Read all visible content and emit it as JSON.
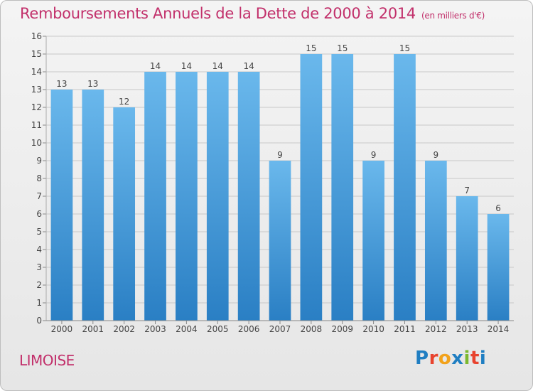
{
  "header": {
    "title": "Remboursements Annuels de la Dette de 2000 à 2014",
    "unit": "(en milliers d'€)"
  },
  "footer": {
    "commune": "LIMOISE",
    "logo_text": "Proxiti",
    "logo_colors": [
      "#1f7ec2",
      "#e8432e",
      "#f2a21b",
      "#1f7ec2",
      "#7cb82f",
      "#e8432e",
      "#1f7ec2"
    ]
  },
  "colors": {
    "title": "#c2306b",
    "bar_top": "#6ab8ec",
    "bar_bottom": "#2a7fc4",
    "grid": "#c8c8c8",
    "axis_text": "#444444"
  },
  "chart_data": {
    "type": "bar",
    "title": "Remboursements Annuels de la Dette de 2000 à 2014",
    "subtitle": "(en milliers d'€)",
    "xlabel": "",
    "ylabel": "",
    "categories": [
      "2000",
      "2001",
      "2002",
      "2003",
      "2004",
      "2005",
      "2006",
      "2007",
      "2008",
      "2009",
      "2010",
      "2011",
      "2012",
      "2013",
      "2014"
    ],
    "values": [
      13,
      13,
      12,
      14,
      14,
      14,
      14,
      9,
      15,
      15,
      9,
      15,
      9,
      7,
      6
    ],
    "ylim": [
      0,
      16
    ],
    "yticks": [
      0,
      1,
      2,
      3,
      4,
      5,
      6,
      7,
      8,
      9,
      10,
      11,
      12,
      13,
      14,
      15,
      16
    ],
    "grid": true,
    "legend": "none"
  }
}
